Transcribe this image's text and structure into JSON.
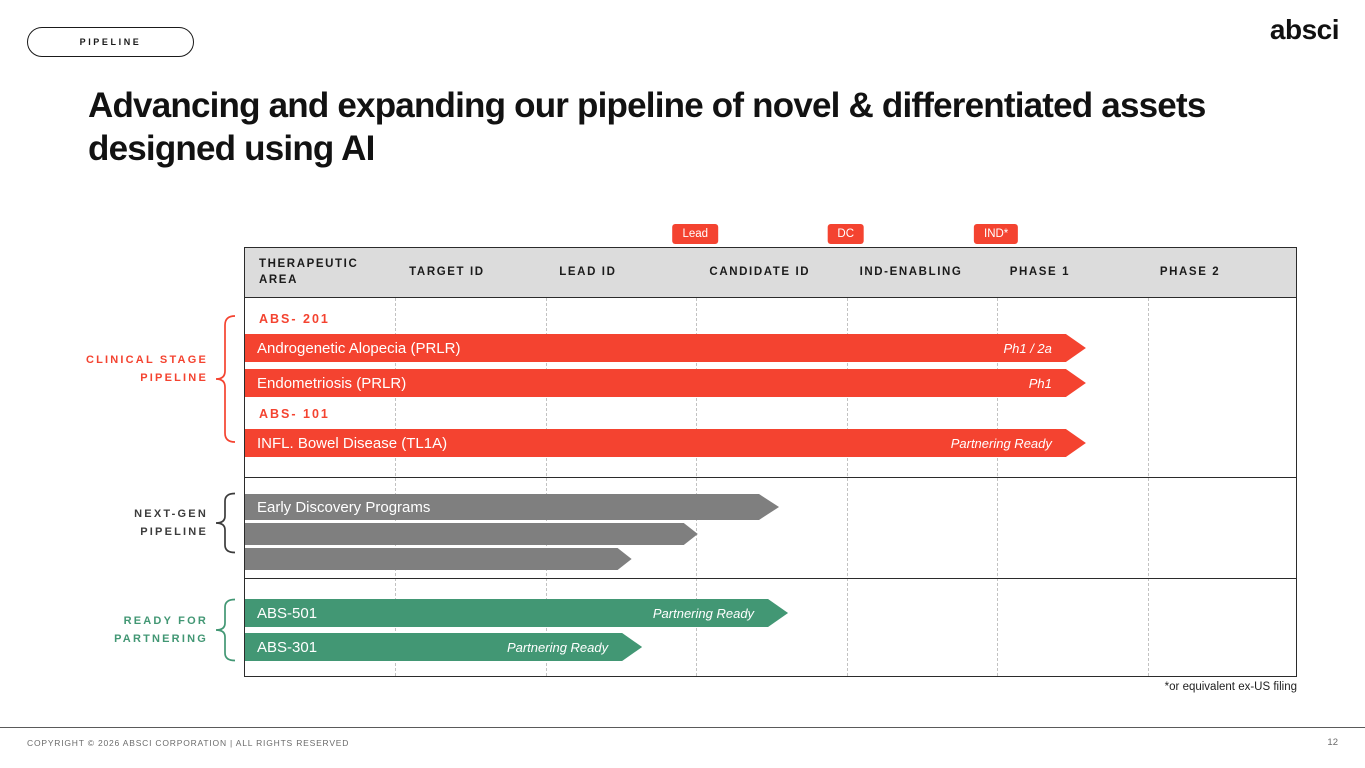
{
  "header": {
    "section_badge": "PIPELINE",
    "logo_text": "absci"
  },
  "title": "Advancing and expanding our pipeline of novel & differentiated assets designed using AI",
  "colors": {
    "red": "#f44330",
    "gray": "#7f7f7f",
    "green": "#429774",
    "header_bg": "#dcdcdc",
    "table_border": "#2b2b2b"
  },
  "chart_data": {
    "type": "bar",
    "orientation": "horizontal",
    "title": "Pipeline progression chart",
    "stage_columns": [
      "THERAPEUTIC AREA",
      "TARGET ID",
      "LEAD ID",
      "CANDIDATE ID",
      "IND-ENABLING",
      "PHASE 1",
      "PHASE 2"
    ],
    "x_axis_units": "stage columns (0-7)",
    "grid": "dashed vertical column separators",
    "milestone_badges": [
      {
        "label": "Lead",
        "boundary_index": 3,
        "after_stage": "LEAD ID"
      },
      {
        "label": "DC",
        "boundary_index": 4,
        "after_stage": "CANDIDATE ID"
      },
      {
        "label": "IND*",
        "boundary_index": 5,
        "after_stage": "IND-ENABLING"
      }
    ],
    "groups": [
      {
        "name": "CLINICAL STAGE PIPELINE",
        "color_key": "red",
        "rows": [
          {
            "kind": "code",
            "text": "ABS- 201"
          },
          {
            "kind": "bar",
            "label": "Androgenetic Alopecia (PRLR)",
            "stage": "Ph1 / 2a",
            "end_units": 5.59
          },
          {
            "kind": "bar",
            "label": "Endometriosis (PRLR)",
            "stage": "Ph1",
            "end_units": 5.59
          },
          {
            "kind": "code",
            "text": "ABS- 101"
          },
          {
            "kind": "bar",
            "label": "INFL. Bowel Disease (TL1A)",
            "stage": "Partnering Ready",
            "end_units": 5.59
          }
        ]
      },
      {
        "name": "NEXT-GEN PIPELINE",
        "color_key": "gray",
        "rows": [
          {
            "kind": "bar",
            "label": "Early Discovery Programs",
            "stage": "",
            "end_units": 3.55,
            "major": true
          },
          {
            "kind": "bar",
            "label": "",
            "stage": "",
            "end_units": 3.01,
            "minor": true
          },
          {
            "kind": "bar",
            "label": "",
            "stage": "",
            "end_units": 2.57,
            "minor": true
          }
        ]
      },
      {
        "name": "READY FOR PARTNERING",
        "color_key": "green",
        "rows": [
          {
            "kind": "bar",
            "label": "ABS-501",
            "stage": "Partnering Ready",
            "end_units": 3.61
          },
          {
            "kind": "bar",
            "label": "ABS-301",
            "stage": "Partnering Ready",
            "end_units": 2.64
          }
        ]
      }
    ]
  },
  "footnote": "*or equivalent ex-US filing",
  "footer": {
    "copyright": "COPYRIGHT © 2026 ABSCI CORPORATION | ALL RIGHTS RESERVED",
    "page_number": "12"
  }
}
